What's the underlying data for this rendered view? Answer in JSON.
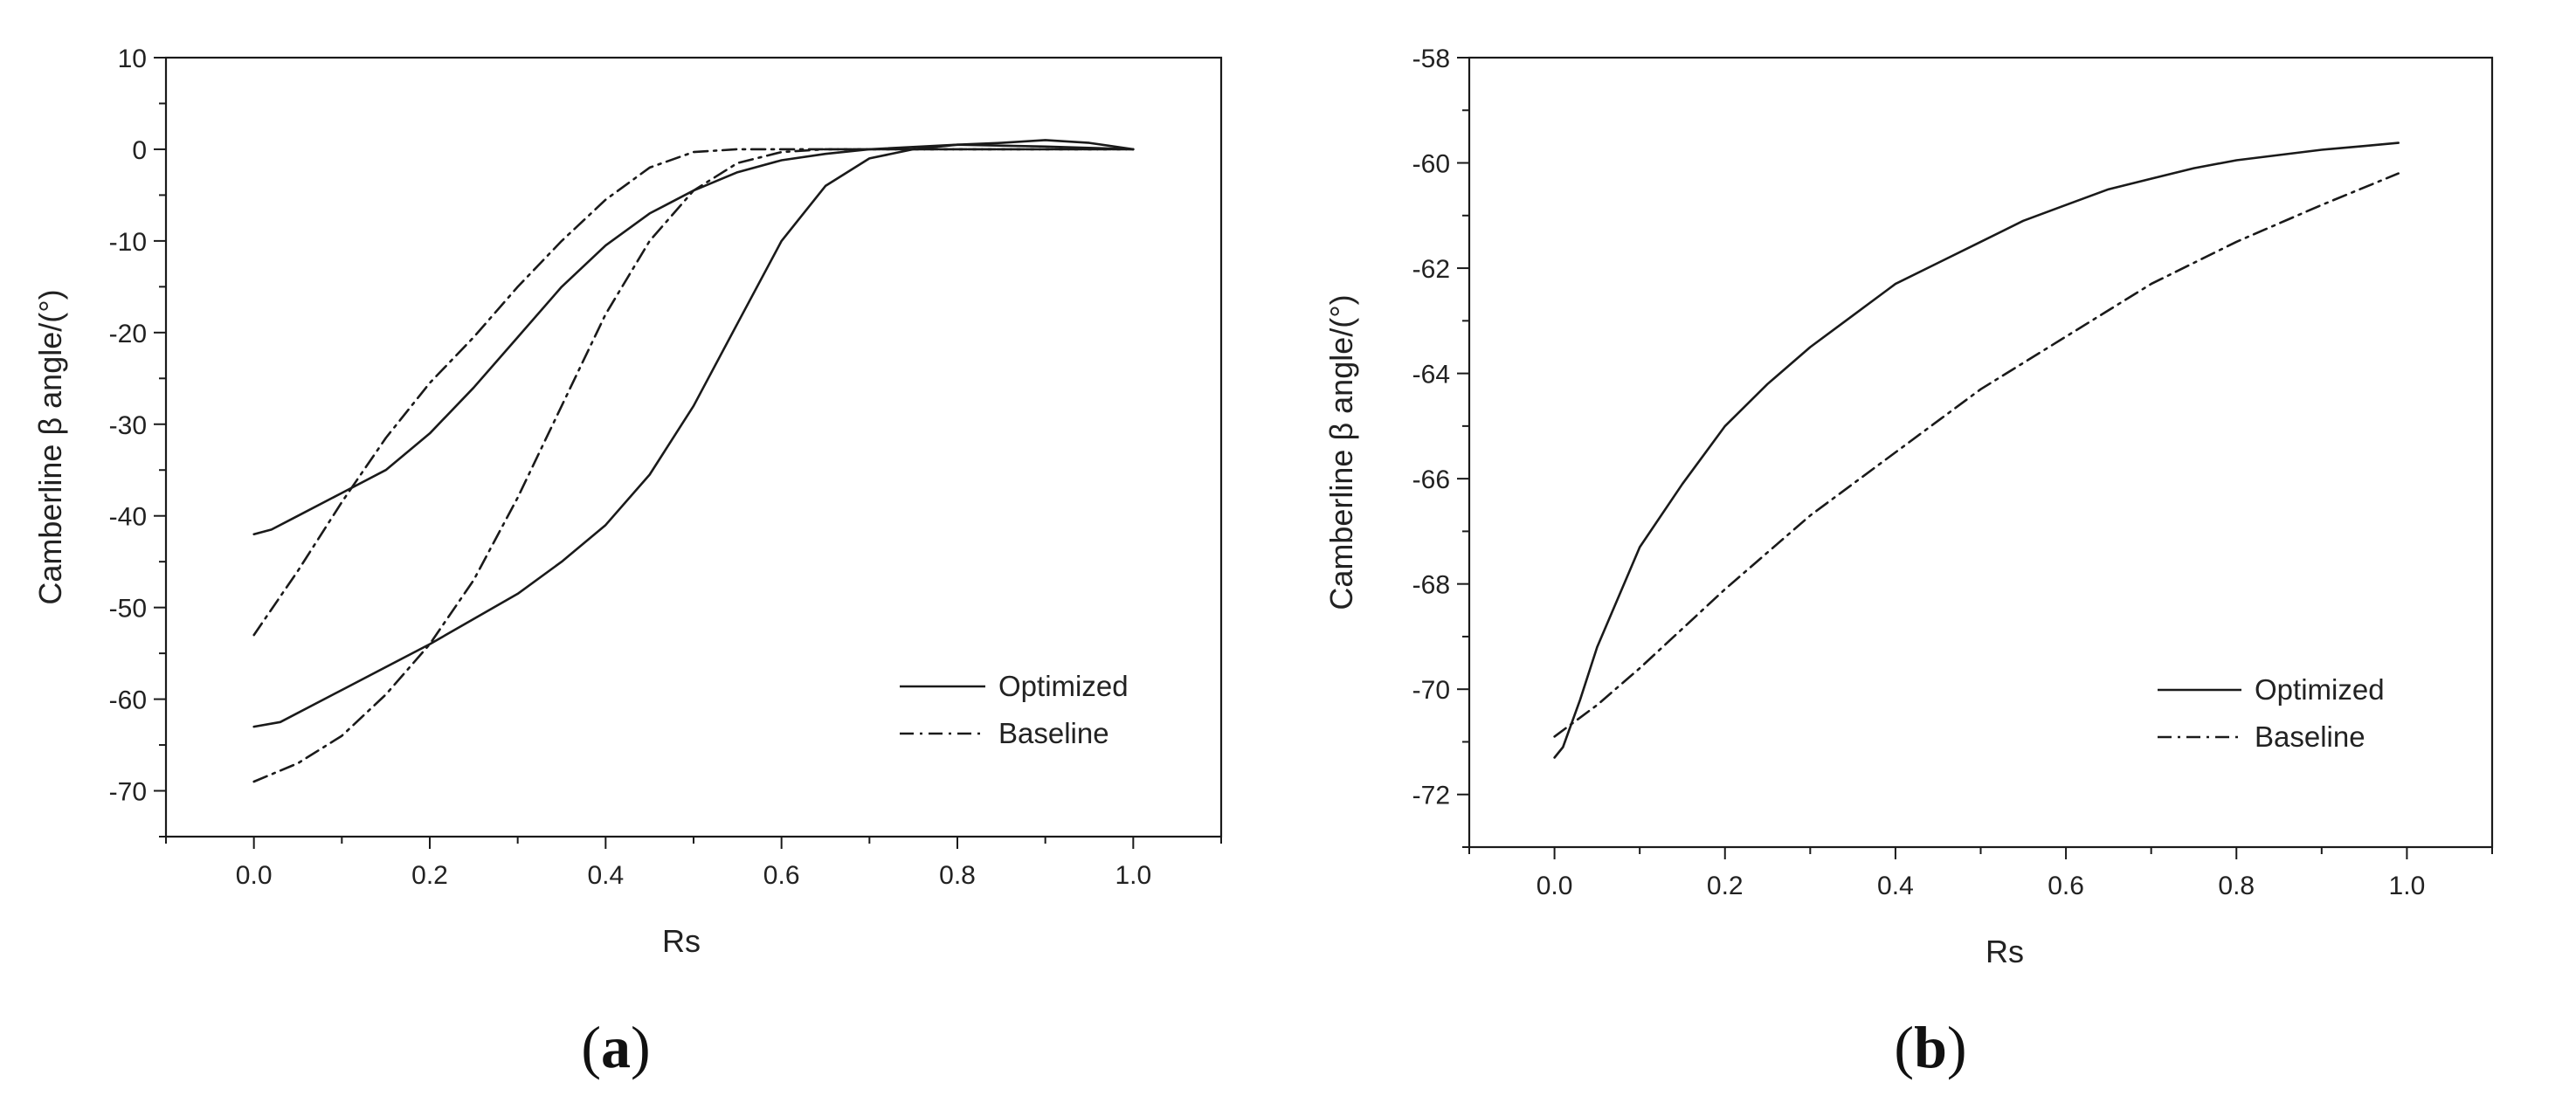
{
  "chart_data": [
    {
      "id": "a",
      "type": "line",
      "panel_label": {
        "open": "(",
        "letter": "a",
        "close": ")"
      },
      "xlabel": "Rs",
      "ylabel": "Camberline β angle/(°)",
      "xlim": [
        -0.1,
        1.1
      ],
      "ylim": [
        -75,
        10
      ],
      "xticks": [
        0.0,
        0.2,
        0.4,
        0.6,
        0.8,
        1.0
      ],
      "xtick_labels": [
        "0.0",
        "0.2",
        "0.4",
        "0.6",
        "0.8",
        "1.0"
      ],
      "yticks": [
        10,
        0,
        -10,
        -20,
        -30,
        -40,
        -50,
        -60,
        -70
      ],
      "ytick_labels": [
        "10",
        "0",
        "-10",
        "-20",
        "-30",
        "-40",
        "-50",
        "-60",
        "-70"
      ],
      "legend": {
        "position": "lower-right",
        "entries": [
          "Optimized",
          "Baseline"
        ]
      },
      "series": [
        {
          "name": "Optimized",
          "style": "solid",
          "curves": [
            {
              "x": [
                0.0,
                0.02,
                0.05,
                0.1,
                0.15,
                0.2,
                0.25,
                0.3,
                0.35,
                0.4,
                0.45,
                0.5,
                0.55,
                0.6,
                0.65,
                0.7,
                0.8,
                0.9,
                1.0
              ],
              "y": [
                -42,
                -41.5,
                -40,
                -37.5,
                -35,
                -31,
                -26,
                -20.5,
                -15,
                -10.5,
                -7,
                -4.5,
                -2.5,
                -1.2,
                -0.5,
                0,
                0.5,
                0.3,
                0
              ]
            },
            {
              "x": [
                0.0,
                0.03,
                0.1,
                0.2,
                0.3,
                0.35,
                0.4,
                0.45,
                0.5,
                0.55,
                0.6,
                0.65,
                0.7,
                0.75,
                0.8,
                0.85,
                0.9,
                0.95,
                1.0
              ],
              "y": [
                -63,
                -62.5,
                -59,
                -54,
                -48.5,
                -45,
                -41,
                -35.5,
                -28,
                -19,
                -10,
                -4,
                -1,
                0,
                0.5,
                0.7,
                1,
                0.7,
                0
              ]
            }
          ]
        },
        {
          "name": "Baseline",
          "style": "dashdot",
          "curves": [
            {
              "x": [
                0.0,
                0.05,
                0.1,
                0.15,
                0.2,
                0.25,
                0.3,
                0.35,
                0.4,
                0.45,
                0.5,
                0.55,
                0.6,
                0.7,
                0.8,
                0.9,
                1.0
              ],
              "y": [
                -53,
                -46,
                -38.5,
                -31.5,
                -25.5,
                -20.5,
                -15,
                -10,
                -5.5,
                -2,
                -0.3,
                0,
                0,
                0,
                0,
                0,
                0
              ]
            },
            {
              "x": [
                0.0,
                0.05,
                0.1,
                0.15,
                0.2,
                0.25,
                0.3,
                0.35,
                0.4,
                0.45,
                0.5,
                0.55,
                0.6,
                0.65,
                0.7,
                0.8,
                0.9,
                1.0
              ],
              "y": [
                -69,
                -67,
                -64,
                -59.5,
                -54,
                -47,
                -38,
                -28,
                -18,
                -10,
                -4.5,
                -1.5,
                -0.3,
                0,
                0,
                0,
                0,
                0
              ]
            }
          ]
        }
      ]
    },
    {
      "id": "b",
      "type": "line",
      "panel_label": {
        "open": "(",
        "letter": "b",
        "close": ")"
      },
      "xlabel": "Rs",
      "ylabel": "Camberline β angle/(°)",
      "xlim": [
        -0.1,
        1.1
      ],
      "ylim": [
        -73,
        -58
      ],
      "xticks": [
        0.0,
        0.2,
        0.4,
        0.6,
        0.8,
        1.0
      ],
      "xtick_labels": [
        "0.0",
        "0.2",
        "0.4",
        "0.6",
        "0.8",
        "1.0"
      ],
      "yticks": [
        -58,
        -60,
        -62,
        -64,
        -66,
        -68,
        -70,
        -72
      ],
      "ytick_labels": [
        "-58",
        "-60",
        "-62",
        "-64",
        "-66",
        "-68",
        "-70",
        "-72"
      ],
      "legend": {
        "position": "lower-right",
        "entries": [
          "Optimized",
          "Baseline"
        ]
      },
      "series": [
        {
          "name": "Optimized",
          "style": "solid",
          "curves": [
            {
              "x": [
                0.0,
                0.01,
                0.03,
                0.05,
                0.1,
                0.15,
                0.2,
                0.25,
                0.3,
                0.35,
                0.4,
                0.45,
                0.5,
                0.55,
                0.6,
                0.65,
                0.7,
                0.75,
                0.8,
                0.85,
                0.9,
                0.95,
                0.99
              ],
              "y": [
                -71.3,
                -71.1,
                -70.2,
                -69.2,
                -67.3,
                -66.1,
                -65.0,
                -64.2,
                -63.5,
                -62.9,
                -62.3,
                -61.9,
                -61.5,
                -61.1,
                -60.8,
                -60.5,
                -60.3,
                -60.1,
                -59.95,
                -59.85,
                -59.75,
                -59.68,
                -59.62
              ]
            }
          ]
        },
        {
          "name": "Baseline",
          "style": "dashdot",
          "curves": [
            {
              "x": [
                0.0,
                0.05,
                0.1,
                0.2,
                0.3,
                0.4,
                0.5,
                0.6,
                0.7,
                0.8,
                0.9,
                0.99
              ],
              "y": [
                -70.9,
                -70.3,
                -69.6,
                -68.1,
                -66.7,
                -65.5,
                -64.3,
                -63.3,
                -62.3,
                -61.5,
                -60.8,
                -60.2
              ]
            }
          ]
        }
      ]
    }
  ]
}
